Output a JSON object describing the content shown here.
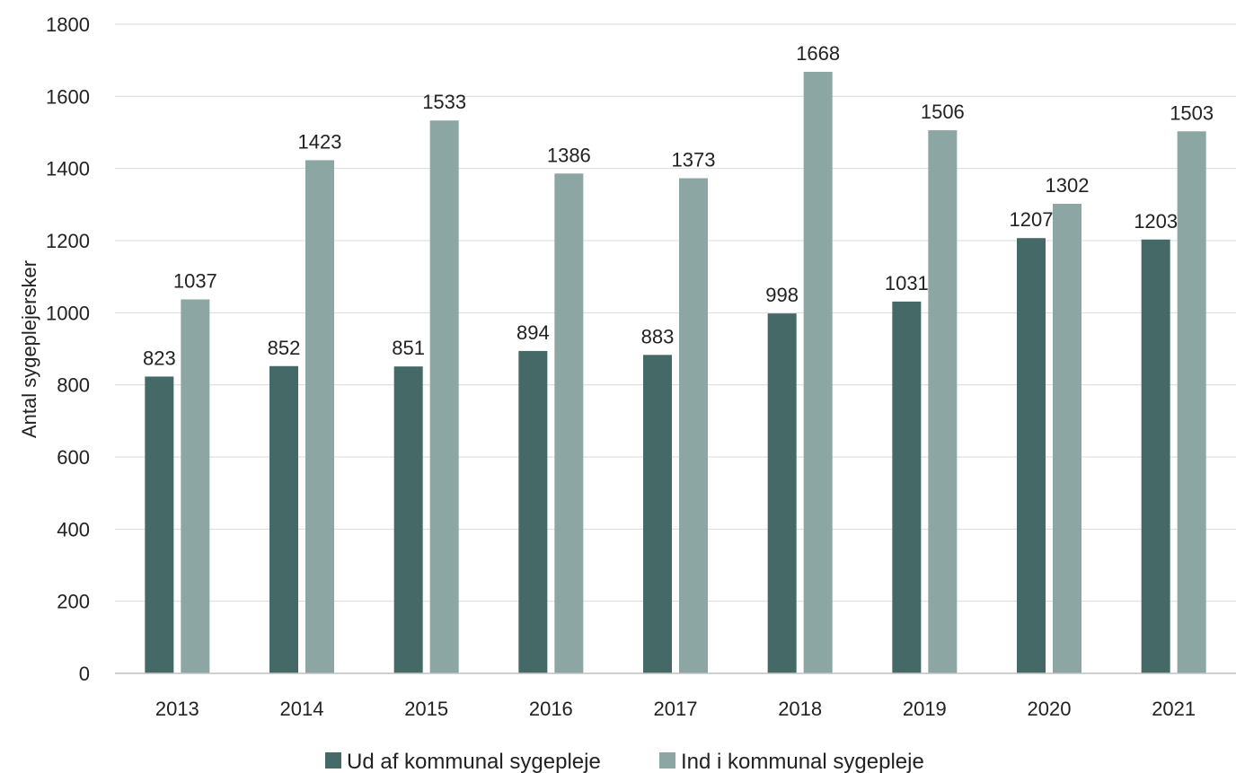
{
  "chart_data": {
    "type": "bar",
    "categories": [
      "2013",
      "2014",
      "2015",
      "2016",
      "2017",
      "2018",
      "2019",
      "2020",
      "2021"
    ],
    "series": [
      {
        "name": "Ud af kommunal sygepleje",
        "color": "#456966",
        "values": [
          823,
          852,
          851,
          894,
          883,
          998,
          1031,
          1207,
          1203
        ]
      },
      {
        "name": "Ind i kommunal sygepleje",
        "color": "#8ba6a3",
        "values": [
          1037,
          1423,
          1533,
          1386,
          1373,
          1668,
          1506,
          1302,
          1503
        ]
      }
    ],
    "title": "",
    "xlabel": "",
    "ylabel": "Antal sygeplejersker",
    "ylim": [
      0,
      1800
    ],
    "yticks": [
      0,
      200,
      400,
      600,
      800,
      1000,
      1200,
      1400,
      1600,
      1800
    ],
    "grid": true,
    "legend_position": "bottom"
  }
}
